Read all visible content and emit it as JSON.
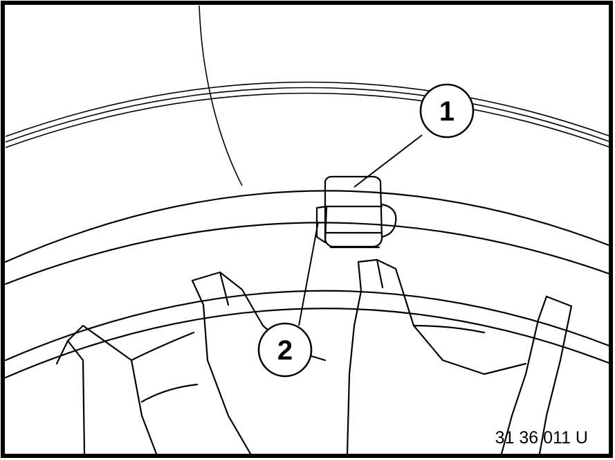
{
  "diagram": {
    "callouts": [
      {
        "label": "1",
        "target": "clip"
      },
      {
        "label": "2",
        "target": "clip-tab"
      }
    ],
    "reference_code": "31 36 011 U"
  }
}
